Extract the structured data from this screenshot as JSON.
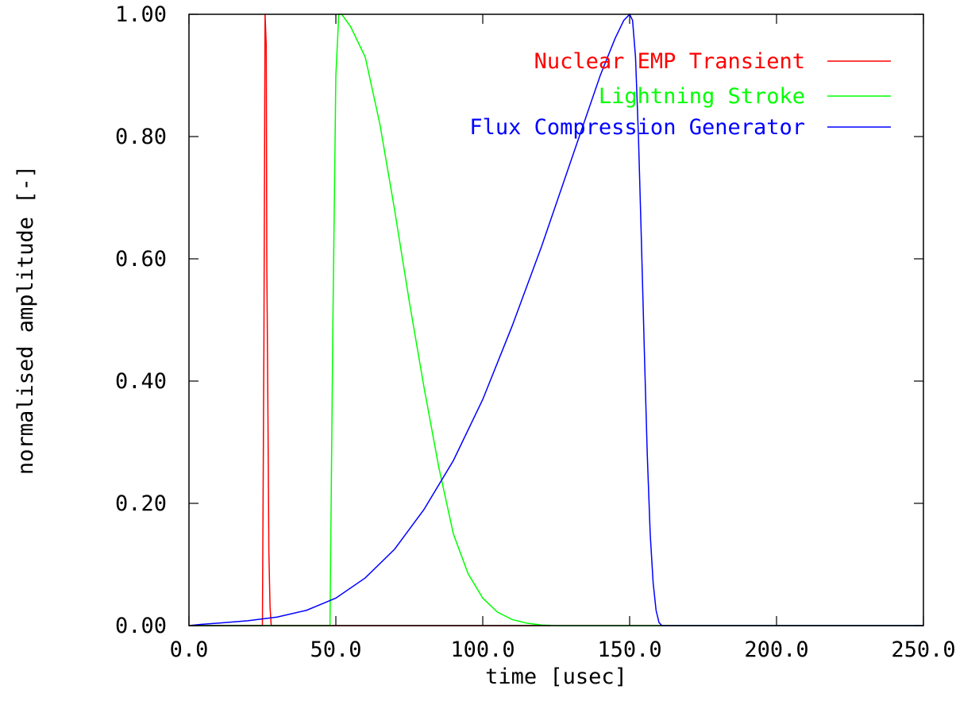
{
  "chart_data": {
    "type": "line",
    "title": "",
    "xlabel": "time [usec]",
    "ylabel": "normalised amplitude [-]",
    "xlim": [
      0,
      250
    ],
    "ylim": [
      0,
      1
    ],
    "x_ticks": [
      "0.0",
      "50.0",
      "100.0",
      "150.0",
      "200.0",
      "250.0"
    ],
    "x_tick_values": [
      0,
      50,
      100,
      150,
      200,
      250
    ],
    "y_ticks": [
      "0.00",
      "0.20",
      "0.40",
      "0.60",
      "0.80",
      "1.00"
    ],
    "y_tick_values": [
      0,
      0.2,
      0.4,
      0.6,
      0.8,
      1.0
    ],
    "grid": false,
    "legend_position": "top-right",
    "series": [
      {
        "name": "Nuclear EMP Transient",
        "color": "#ff0000",
        "x": [
          0,
          25.0,
          25.5,
          25.9,
          26.3,
          26.5,
          26.8,
          27.2,
          27.6,
          28.0,
          123.0
        ],
        "y": [
          0,
          0,
          0.45,
          1.0,
          0.95,
          0.59,
          0.4,
          0.12,
          0.03,
          0,
          0
        ]
      },
      {
        "name": "Lightning Stroke",
        "color": "#00ff00",
        "x": [
          0,
          48.0,
          49.0,
          50.0,
          51.0,
          52.0,
          55.0,
          60.0,
          65.0,
          70.0,
          75.0,
          80.0,
          85.0,
          90.0,
          95.0,
          100.0,
          105.0,
          110.0,
          115.0,
          120.0,
          125.0,
          130.0,
          250.0
        ],
        "y": [
          0,
          0,
          0.5,
          0.9,
          1.0,
          1.0,
          0.98,
          0.93,
          0.82,
          0.68,
          0.53,
          0.39,
          0.26,
          0.15,
          0.085,
          0.045,
          0.022,
          0.01,
          0.004,
          0.001,
          0,
          0,
          0
        ]
      },
      {
        "name": "Flux Compression Generator",
        "color": "#0000ff",
        "x": [
          0,
          4.0,
          10.0,
          20.0,
          30.0,
          40.0,
          50.0,
          60.0,
          70.0,
          80.0,
          90.0,
          100.0,
          110.0,
          120.0,
          130.0,
          140.0,
          145.0,
          148.0,
          150.0,
          151.0,
          152.0,
          153.0,
          154.0,
          155.0,
          156.0,
          157.0,
          158.0,
          159.0,
          160.0,
          161.0,
          250.0
        ],
        "y": [
          0,
          0.002,
          0.004,
          0.008,
          0.014,
          0.025,
          0.045,
          0.078,
          0.125,
          0.19,
          0.27,
          0.37,
          0.49,
          0.62,
          0.76,
          0.9,
          0.96,
          0.99,
          1.0,
          0.99,
          0.93,
          0.8,
          0.63,
          0.45,
          0.28,
          0.15,
          0.07,
          0.025,
          0.005,
          0,
          0
        ]
      }
    ]
  }
}
